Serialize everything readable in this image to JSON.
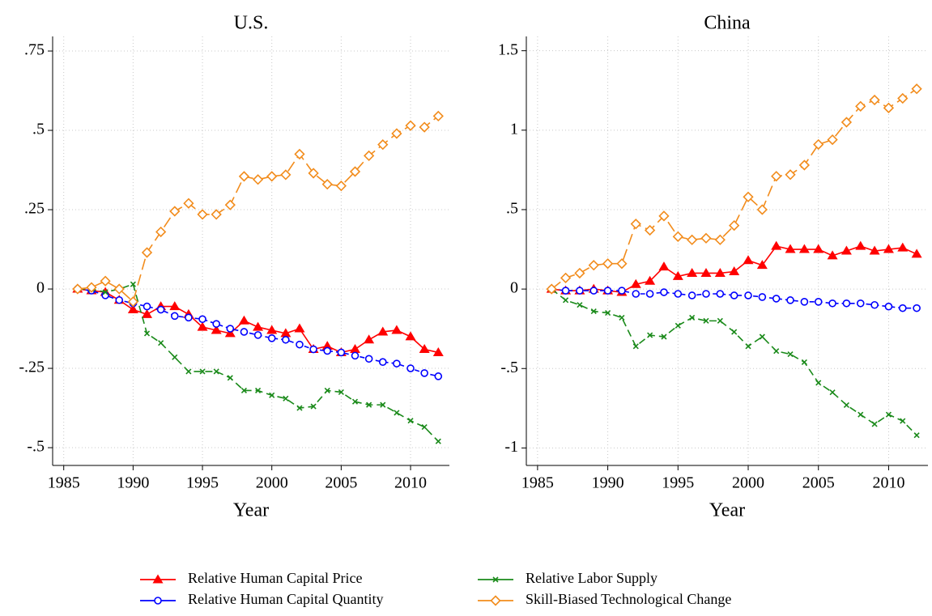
{
  "chart_data": [
    {
      "type": "line",
      "title": "U.S.",
      "xlabel": "Year",
      "x": [
        1986,
        1987,
        1988,
        1989,
        1990,
        1991,
        1992,
        1993,
        1994,
        1995,
        1996,
        1997,
        1998,
        1999,
        2000,
        2001,
        2002,
        2003,
        2004,
        2005,
        2006,
        2007,
        2008,
        2009,
        2010,
        2011,
        2012
      ],
      "xlim": [
        1984.2,
        2012.8
      ],
      "xticks": [
        1985,
        1990,
        1995,
        2000,
        2005,
        2010
      ],
      "ylim": [
        -0.556,
        0.796
      ],
      "yticks": [
        {
          "value": -0.5,
          "label": "-.5"
        },
        {
          "value": -0.25,
          "label": "-.25"
        },
        0,
        {
          "value": 0.25,
          "label": ".25"
        },
        {
          "value": 0.5,
          "label": ".5"
        },
        {
          "value": 0.75,
          "label": ".75"
        }
      ],
      "grid": true,
      "series": [
        {
          "name": "Relative Human Capital Price",
          "color": "#ff0000",
          "marker": "triangle",
          "dash": "solid",
          "values": [
            0,
            -0.005,
            -0.01,
            -0.035,
            -0.065,
            -0.08,
            -0.055,
            -0.055,
            -0.08,
            -0.12,
            -0.13,
            -0.14,
            -0.1,
            -0.12,
            -0.13,
            -0.14,
            -0.125,
            -0.19,
            -0.18,
            -0.2,
            -0.19,
            -0.16,
            -0.135,
            -0.13,
            -0.15,
            -0.19,
            -0.2
          ]
        },
        {
          "name": "Relative Human Capital Quantity",
          "color": "#0000ff",
          "marker": "circle",
          "dash": "short",
          "values": [
            0,
            -0.005,
            -0.02,
            -0.035,
            -0.045,
            -0.055,
            -0.065,
            -0.085,
            -0.09,
            -0.095,
            -0.11,
            -0.125,
            -0.135,
            -0.145,
            -0.155,
            -0.16,
            -0.175,
            -0.19,
            -0.195,
            -0.2,
            -0.21,
            -0.22,
            -0.23,
            -0.235,
            -0.25,
            -0.265,
            -0.275
          ]
        },
        {
          "name": "Relative Labor Supply",
          "color": "#1a8a1a",
          "marker": "x",
          "dash": "medium",
          "values": [
            0,
            0,
            -0.01,
            0,
            0.015,
            -0.14,
            -0.17,
            -0.215,
            -0.26,
            -0.26,
            -0.26,
            -0.28,
            -0.32,
            -0.32,
            -0.335,
            -0.345,
            -0.375,
            -0.37,
            -0.32,
            -0.325,
            -0.355,
            -0.365,
            -0.365,
            -0.39,
            -0.415,
            -0.435,
            -0.48
          ]
        },
        {
          "name": "Skill-Biased Technological Change",
          "color": "#f28c1c",
          "marker": "diamond",
          "dash": "long",
          "values": [
            0,
            0.005,
            0.025,
            0,
            -0.04,
            0.115,
            0.18,
            0.245,
            0.27,
            0.235,
            0.235,
            0.265,
            0.355,
            0.345,
            0.355,
            0.36,
            0.425,
            0.365,
            0.33,
            0.325,
            0.37,
            0.42,
            0.455,
            0.49,
            0.515,
            0.51,
            0.545
          ]
        }
      ]
    },
    {
      "type": "line",
      "title": "China",
      "xlabel": "Year",
      "x": [
        1986,
        1987,
        1988,
        1989,
        1990,
        1991,
        1992,
        1993,
        1994,
        1995,
        1996,
        1997,
        1998,
        1999,
        2000,
        2001,
        2002,
        2003,
        2004,
        2005,
        2006,
        2007,
        2008,
        2009,
        2010,
        2011,
        2012
      ],
      "xlim": [
        1984.2,
        2012.8
      ],
      "xticks": [
        1985,
        1990,
        1995,
        2000,
        2005,
        2010
      ],
      "ylim": [
        -1.11,
        1.59
      ],
      "yticks": [
        -1,
        {
          "value": -0.5,
          "label": "-.5"
        },
        0,
        {
          "value": 0.5,
          "label": ".5"
        },
        1,
        1.5
      ],
      "grid": true,
      "series": [
        {
          "color": "#ff0000",
          "marker": "triangle",
          "dash": "solid",
          "values": [
            0,
            -0.01,
            -0.01,
            0,
            -0.01,
            -0.02,
            0.03,
            0.05,
            0.14,
            0.08,
            0.1,
            0.1,
            0.1,
            0.11,
            0.18,
            0.15,
            0.27,
            0.25,
            0.25,
            0.25,
            0.21,
            0.24,
            0.27,
            0.24,
            0.25,
            0.26,
            0.22
          ]
        },
        {
          "color": "#0000ff",
          "marker": "circle",
          "dash": "short",
          "values": [
            0,
            -0.01,
            -0.01,
            -0.01,
            -0.01,
            -0.01,
            -0.03,
            -0.03,
            -0.02,
            -0.03,
            -0.04,
            -0.03,
            -0.03,
            -0.04,
            -0.04,
            -0.05,
            -0.06,
            -0.07,
            -0.08,
            -0.08,
            -0.09,
            -0.09,
            -0.09,
            -0.1,
            -0.11,
            -0.12,
            -0.12
          ]
        },
        {
          "color": "#1a8a1a",
          "marker": "x",
          "dash": "medium",
          "values": [
            0,
            -0.07,
            -0.1,
            -0.14,
            -0.15,
            -0.18,
            -0.36,
            -0.29,
            -0.3,
            -0.23,
            -0.18,
            -0.2,
            -0.2,
            -0.27,
            -0.36,
            -0.3,
            -0.39,
            -0.41,
            -0.46,
            -0.59,
            -0.65,
            -0.73,
            -0.79,
            -0.85,
            -0.79,
            -0.83,
            -0.92
          ]
        },
        {
          "color": "#f28c1c",
          "marker": "diamond",
          "dash": "long",
          "values": [
            0,
            0.07,
            0.1,
            0.15,
            0.16,
            0.16,
            0.41,
            0.37,
            0.46,
            0.33,
            0.31,
            0.32,
            0.31,
            0.4,
            0.58,
            0.5,
            0.71,
            0.72,
            0.78,
            0.91,
            0.94,
            1.05,
            1.15,
            1.19,
            1.14,
            1.2,
            1.26
          ]
        }
      ]
    }
  ]
}
